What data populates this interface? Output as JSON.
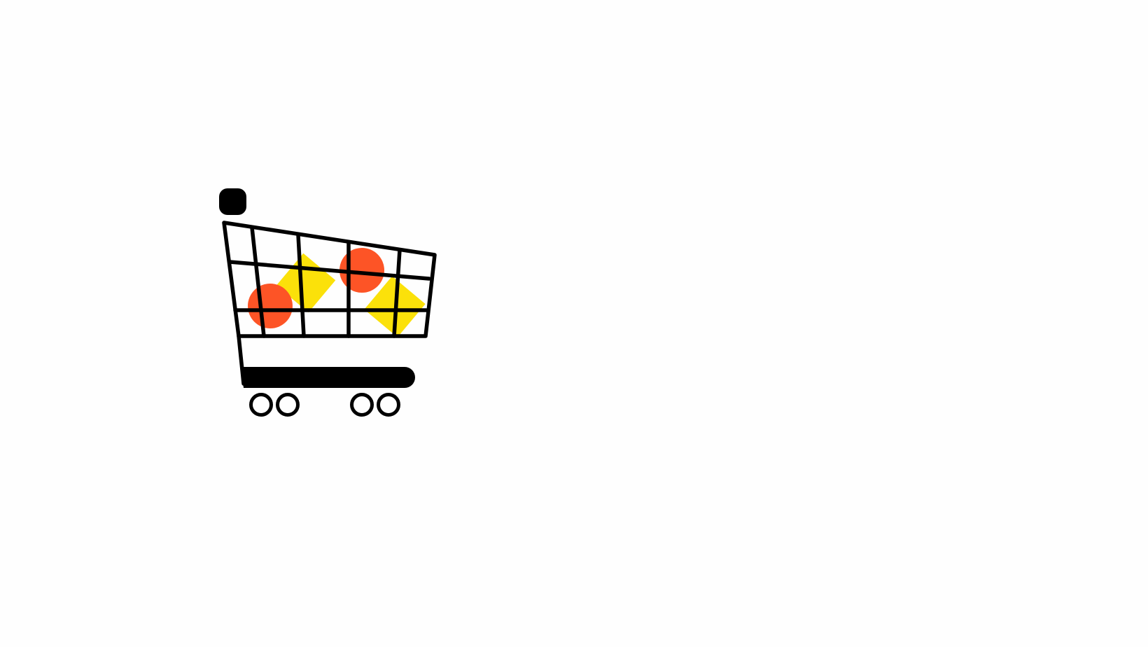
{
  "illustration": {
    "subject": "shopping-cart-icon",
    "colors": {
      "background": "#fefefe",
      "outline": "#000000",
      "fruit_red": "#fd5426",
      "fruit_yellow": "#fbe10a"
    }
  }
}
